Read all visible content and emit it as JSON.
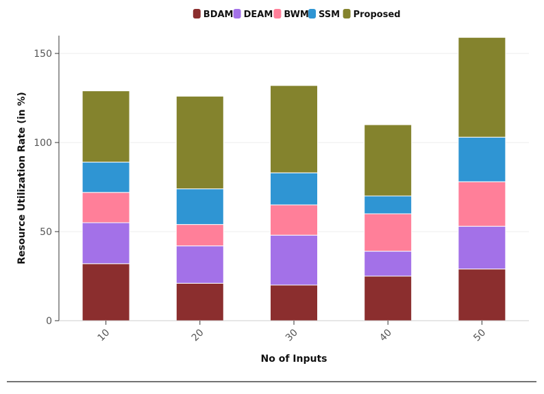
{
  "chart_data": {
    "type": "bar",
    "stacked": true,
    "categories": [
      "10",
      "20",
      "30",
      "40",
      "50"
    ],
    "series": [
      {
        "name": "BDAM",
        "color": "#8b2e2e",
        "values": [
          32,
          21,
          20,
          25,
          29
        ]
      },
      {
        "name": "DEAM",
        "color": "#a371e8",
        "values": [
          23,
          21,
          28,
          14,
          24
        ]
      },
      {
        "name": "BWM",
        "color": "#ff7f99",
        "values": [
          17,
          12,
          17,
          21,
          25
        ]
      },
      {
        "name": "SSM",
        "color": "#2f95d3",
        "values": [
          17,
          20,
          18,
          10,
          25
        ]
      },
      {
        "name": "Proposed",
        "color": "#84832d",
        "values": [
          40,
          52,
          49,
          40,
          56
        ]
      }
    ],
    "xlabel": "No of Inputs",
    "ylabel": "Resource Utilization Rate (in %)",
    "ylim": [
      0,
      160
    ],
    "yticks": [
      0,
      50,
      100,
      150
    ],
    "grid": true,
    "legend_position": "top-center"
  }
}
